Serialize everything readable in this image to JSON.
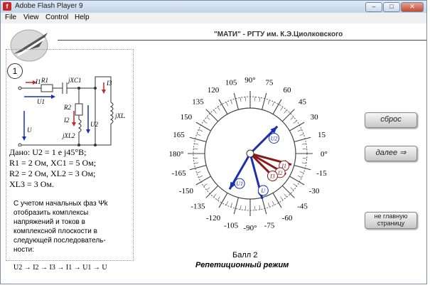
{
  "window": {
    "title": "Adobe Flash Player 9",
    "minimize": "–",
    "restore": "□",
    "close": "✕"
  },
  "menu": [
    "File",
    "View",
    "Control",
    "Help"
  ],
  "header": {
    "title": "\"МАТИ\" - РГТУ им.  К.Э.Циолковского"
  },
  "task_number": "1",
  "circuit": {
    "I1": "I1",
    "R1": "R1",
    "jXC1": "jXC1",
    "U1": "U1",
    "U": "U",
    "R2": "R2",
    "I2": "I2",
    "jXL2": "jXL2",
    "U2": "U2",
    "I3": "I3",
    "jXL3": "jXL3"
  },
  "given": {
    "line1": "Дано:  U2 = 1  e j45°B;",
    "line2": "R1 =  2  Ом,  XC1 = 5  Ом;",
    "line3": "R2 =  2  Ом,  XL2 =  3 Ом;",
    "line4": "XL3 =  3  Ом."
  },
  "task_text": [
    "С учетом начальных фаз Ψk",
    "отобразить комплексы",
    "напряжений и токов в",
    "комплексной плоскости в",
    "следующей последователь-",
    "ности:"
  ],
  "sequence": "U2 → I2 → I3 → I1 → U1 → U",
  "dial": {
    "angle_labels": [
      {
        "deg": 0,
        "text": "0°"
      },
      {
        "deg": 15,
        "text": "15"
      },
      {
        "deg": 30,
        "text": "30"
      },
      {
        "deg": 45,
        "text": "45"
      },
      {
        "deg": 60,
        "text": "60"
      },
      {
        "deg": 75,
        "text": "75"
      },
      {
        "deg": 90,
        "text": "90°"
      },
      {
        "deg": 105,
        "text": "105"
      },
      {
        "deg": 120,
        "text": "120"
      },
      {
        "deg": 135,
        "text": "135"
      },
      {
        "deg": 150,
        "text": "150"
      },
      {
        "deg": 165,
        "text": "165"
      },
      {
        "deg": 180,
        "text": "180°"
      },
      {
        "deg": -165,
        "text": "-165"
      },
      {
        "deg": -150,
        "text": "-150"
      },
      {
        "deg": -135,
        "text": "-135"
      },
      {
        "deg": -120,
        "text": "-120"
      },
      {
        "deg": -105,
        "text": "-105"
      },
      {
        "deg": -90,
        "text": "-90°"
      },
      {
        "deg": -75,
        "text": "-75"
      },
      {
        "deg": -60,
        "text": "-60"
      },
      {
        "deg": -45,
        "text": "-45"
      },
      {
        "deg": -30,
        "text": "-30"
      },
      {
        "deg": -15,
        "text": "-15"
      }
    ]
  },
  "chart_data": {
    "type": "phasor",
    "series": [
      {
        "name": "U2",
        "angle_deg": 45,
        "color": "#1a2fb0"
      },
      {
        "name": "U1",
        "angle_deg": -120,
        "color": "#1a2fb0"
      },
      {
        "name": "U",
        "angle_deg": -75,
        "color": "#1a2fb0"
      },
      {
        "name": "I1",
        "angle_deg": -15,
        "color": "#8b1a1a"
      },
      {
        "name": "I2",
        "angle_deg": -30,
        "color": "#8b1a1a"
      },
      {
        "name": "I3",
        "angle_deg": -45,
        "color": "#8b1a1a"
      }
    ]
  },
  "buttons": {
    "reset": "сброс",
    "next": "далее ⇒",
    "main": "не главную страницу"
  },
  "score": "Балл 2",
  "mode": "Репетиционный режим"
}
